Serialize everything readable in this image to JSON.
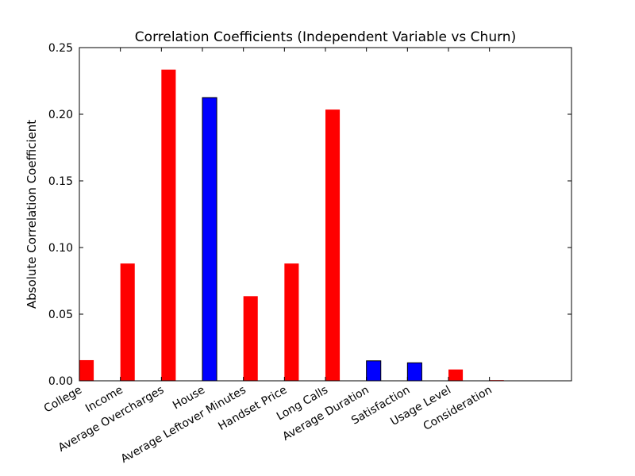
{
  "chart_data": {
    "type": "bar",
    "title": "Correlation Coefficients (Independent Variable vs Churn)",
    "xlabel": "",
    "ylabel": "Absolute Correlation Coefficient",
    "ylim": [
      0,
      0.25
    ],
    "yticks": [
      "0.00",
      "0.05",
      "0.10",
      "0.15",
      "0.20",
      "0.25"
    ],
    "grid": false,
    "categories": [
      "College",
      "Income",
      "Average Overcharges",
      "House",
      "Average Leftover Minutes",
      "Handset Price",
      "Long Calls",
      "Average Duration",
      "Satisfaction",
      "Usage Level",
      "Consideration"
    ],
    "values": [
      0.0155,
      0.088,
      0.2335,
      0.2125,
      0.0635,
      0.088,
      0.2035,
      0.015,
      0.0135,
      0.0085,
      0.0005
    ],
    "colors": [
      "#ff0000",
      "#ff0000",
      "#ff0000",
      "#0000ff",
      "#ff0000",
      "#ff0000",
      "#ff0000",
      "#0000ff",
      "#0000ff",
      "#ff0000",
      "#ff0000"
    ]
  }
}
